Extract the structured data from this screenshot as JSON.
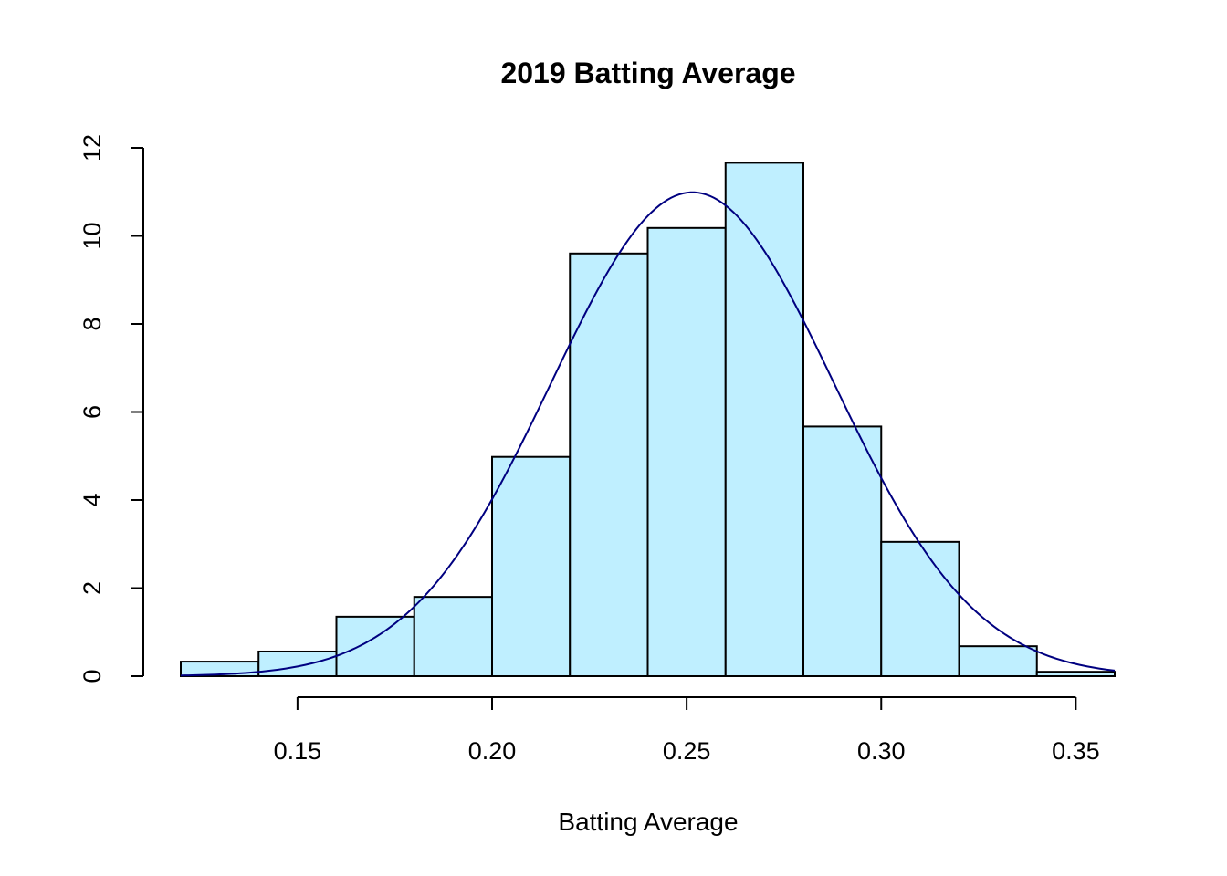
{
  "chart_data": {
    "type": "bar",
    "subtype": "histogram",
    "title": "2019 Batting Average",
    "xlabel": "Batting Average",
    "ylabel": "",
    "xlim": [
      0.12,
      0.36
    ],
    "ylim": [
      0,
      12
    ],
    "x_ticks": [
      "0.15",
      "0.20",
      "0.25",
      "0.30",
      "0.35"
    ],
    "x_tick_values": [
      0.15,
      0.2,
      0.25,
      0.3,
      0.35
    ],
    "y_ticks": [
      "0",
      "2",
      "4",
      "6",
      "8",
      "10",
      "12"
    ],
    "y_tick_values": [
      0,
      2,
      4,
      6,
      8,
      10,
      12
    ],
    "bins": [
      {
        "start": 0.12,
        "end": 0.14,
        "value": 0.33
      },
      {
        "start": 0.14,
        "end": 0.16,
        "value": 0.56
      },
      {
        "start": 0.16,
        "end": 0.18,
        "value": 1.35
      },
      {
        "start": 0.18,
        "end": 0.2,
        "value": 1.8
      },
      {
        "start": 0.2,
        "end": 0.22,
        "value": 4.98
      },
      {
        "start": 0.22,
        "end": 0.24,
        "value": 9.6
      },
      {
        "start": 0.24,
        "end": 0.26,
        "value": 10.18
      },
      {
        "start": 0.26,
        "end": 0.28,
        "value": 11.66
      },
      {
        "start": 0.28,
        "end": 0.3,
        "value": 5.67
      },
      {
        "start": 0.3,
        "end": 0.32,
        "value": 3.05
      },
      {
        "start": 0.32,
        "end": 0.34,
        "value": 0.68
      },
      {
        "start": 0.34,
        "end": 0.36,
        "value": 0.1
      }
    ],
    "density_curve": {
      "distribution": "normal",
      "mean": 0.2515,
      "sd": 0.0363
    },
    "grid": false,
    "bar_color": "#BFEFFF",
    "curve_color": "#000080"
  }
}
